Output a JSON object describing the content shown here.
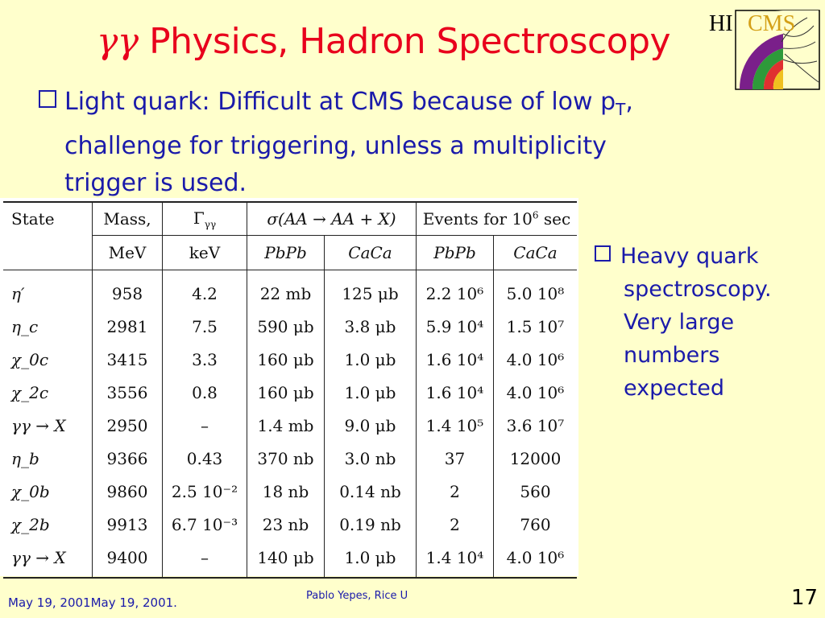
{
  "slide": {
    "title_symbol": "γγ",
    "title_text": " Physics, Hadron Spectroscopy",
    "logo": {
      "hi": "HI",
      "cms": "CMS"
    },
    "bullet_main": {
      "line1": "Light quark: Difficult at CMS because of low p",
      "line1_sub": "T",
      "line1_tail": ",",
      "line2": "challenge for triggering, unless a multiplicity",
      "line3": "trigger is used."
    },
    "bullet_side": {
      "lines": [
        "Heavy quark",
        "spectroscopy.",
        "Very large",
        "numbers",
        "expected"
      ]
    },
    "footer": {
      "date": "May 19, 2001May 19, 2001.",
      "author": "Pablo Yepes, Rice U",
      "page": "17"
    }
  },
  "table": {
    "headers": {
      "state": "State",
      "mass": "Mass,",
      "mass_unit": "MeV",
      "gamma": "Γ",
      "gamma_sub": "γγ",
      "gamma_unit": "keV",
      "sigma": "σ(AA → AA + X)",
      "events": "Events for 10",
      "events_sup": "6",
      "events_tail": " sec",
      "pbpb": "PbPb",
      "caca": "CaCa",
      "pbpb2": "PbPb",
      "caca2": "CaCa"
    },
    "rows": [
      {
        "state": "η′",
        "mass": "958",
        "gamma": "4.2",
        "s_pb": "22 mb",
        "s_ca": "125 μb",
        "e_pb": "2.2 10⁶",
        "e_ca": "5.0 10⁸"
      },
      {
        "state": "η_c",
        "mass": "2981",
        "gamma": "7.5",
        "s_pb": "590 μb",
        "s_ca": "3.8 μb",
        "e_pb": "5.9 10⁴",
        "e_ca": "1.5 10⁷"
      },
      {
        "state": "χ_0c",
        "mass": "3415",
        "gamma": "3.3",
        "s_pb": "160 μb",
        "s_ca": "1.0 μb",
        "e_pb": "1.6 10⁴",
        "e_ca": "4.0 10⁶"
      },
      {
        "state": "χ_2c",
        "mass": "3556",
        "gamma": "0.8",
        "s_pb": "160 μb",
        "s_ca": "1.0 μb",
        "e_pb": "1.6 10⁴",
        "e_ca": "4.0 10⁶"
      },
      {
        "state": "γγ → X",
        "mass": "2950",
        "gamma": "–",
        "s_pb": "1.4 mb",
        "s_ca": "9.0 μb",
        "e_pb": "1.4 10⁵",
        "e_ca": "3.6 10⁷"
      },
      {
        "state": "η_b",
        "mass": "9366",
        "gamma": "0.43",
        "s_pb": "370 nb",
        "s_ca": "3.0 nb",
        "e_pb": "37",
        "e_ca": "12000"
      },
      {
        "state": "χ_0b",
        "mass": "9860",
        "gamma": "2.5 10⁻²",
        "s_pb": "18 nb",
        "s_ca": "0.14 nb",
        "e_pb": "2",
        "e_ca": "560"
      },
      {
        "state": "χ_2b",
        "mass": "9913",
        "gamma": "6.7 10⁻³",
        "s_pb": "23 nb",
        "s_ca": "0.19 nb",
        "e_pb": "2",
        "e_ca": "760"
      },
      {
        "state": "γγ → X",
        "mass": "9400",
        "gamma": "–",
        "s_pb": "140 μb",
        "s_ca": "1.0 μb",
        "e_pb": "1.4 10⁴",
        "e_ca": "4.0 10⁶"
      }
    ]
  }
}
